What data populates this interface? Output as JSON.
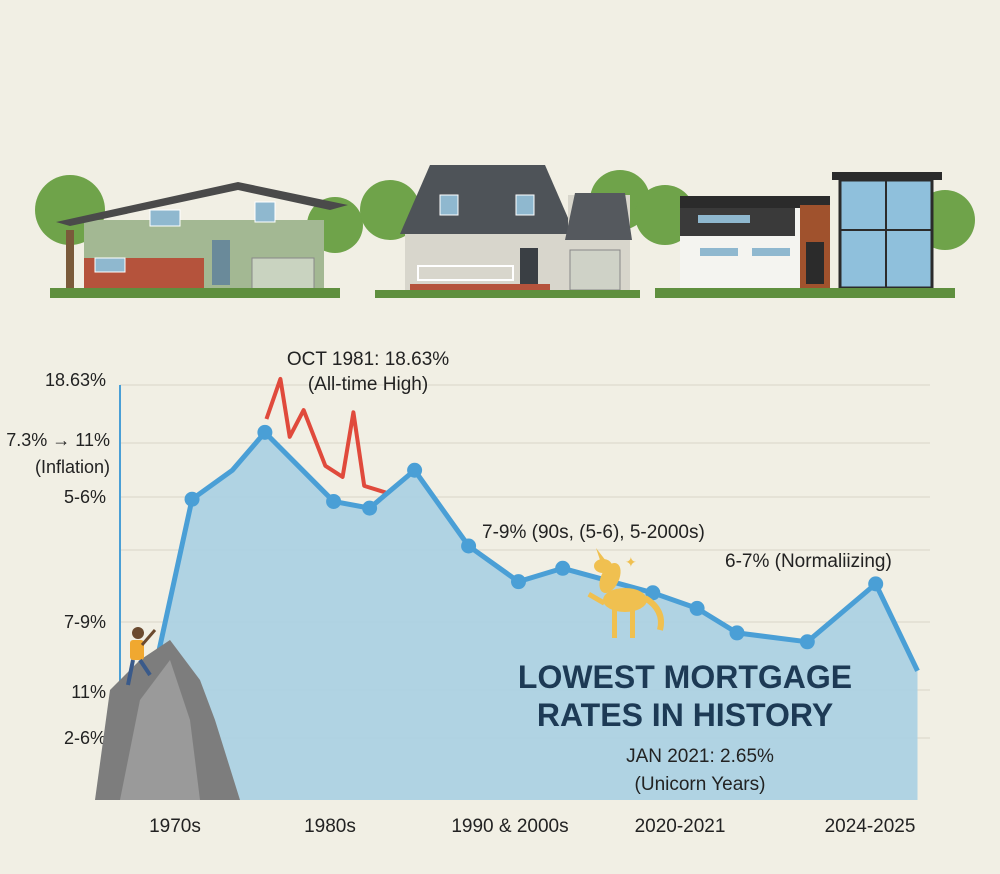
{
  "chart_data": {
    "type": "area",
    "title": "LOWEST MORTGAGE RATES IN HISTORY",
    "xlabel": "",
    "ylabel": "",
    "x_ticks": [
      "1970s",
      "1980s",
      "1990 & 2000s",
      "2020-2021",
      "2024-2025"
    ],
    "y_ticks": [
      "18.63%",
      "7.3% → 11%\n(Inflation)",
      "5-6%",
      "7-9%",
      "11%",
      "2-6%"
    ],
    "y_tick_labels": [
      "18.63%",
      "7.3% → 11%",
      "(Inflation)",
      "5-6%",
      "7-9%",
      "11%",
      "2-6%"
    ],
    "grid": true,
    "series": [
      {
        "color": "#4a9fd6",
        "fill": "#a9cfe2",
        "x": [
          -0.16,
          0.11,
          0.37,
          0.58,
          1.02,
          1.22,
          1.47,
          1.77,
          2.05,
          2.31,
          2.84,
          3.09,
          3.3,
          3.67,
          4.03,
          4.25
        ],
        "y": [
          4.9,
          13.5,
          14.8,
          16.5,
          13.4,
          13.1,
          14.8,
          11.4,
          9.8,
          10.4,
          9.3,
          8.6,
          7.5,
          7.1,
          9.7,
          5.8
        ],
        "markers": [
          false,
          true,
          false,
          true,
          true,
          true,
          true,
          true,
          true,
          true,
          true,
          true,
          true,
          true,
          true,
          false
        ]
      },
      {
        "color": "#e04a3c",
        "x": [
          0.59,
          0.68,
          0.74,
          0.83,
          0.97,
          1.07,
          1.13,
          1.19,
          1.31
        ],
        "y": [
          17.1,
          18.9,
          16.3,
          17.5,
          15.0,
          14.5,
          17.4,
          14.1,
          13.8
        ]
      }
    ],
    "annotations": {
      "peak_line1": "OCT 1981: 18.63%",
      "peak_line2": "(All-time High)",
      "nineties": "7-9% (90s, (5-6), 5-2000s)",
      "normalizing": "6-7% (Normaliizing)",
      "headline_line1": "LOWEST MORTGAGE",
      "headline_line2": "RATES IN HISTORY",
      "low_line1": "JAN 2021: 2.65%",
      "low_line2": "(Unicorn Years)"
    }
  },
  "colors": {
    "background": "#f1efe4",
    "headline": "#1d3a55",
    "text": "#222222"
  },
  "icons": [
    "house-1970s-icon",
    "house-1990s-icon",
    "house-modern-icon",
    "climber-icon",
    "rock-icon",
    "unicorn-icon"
  ]
}
